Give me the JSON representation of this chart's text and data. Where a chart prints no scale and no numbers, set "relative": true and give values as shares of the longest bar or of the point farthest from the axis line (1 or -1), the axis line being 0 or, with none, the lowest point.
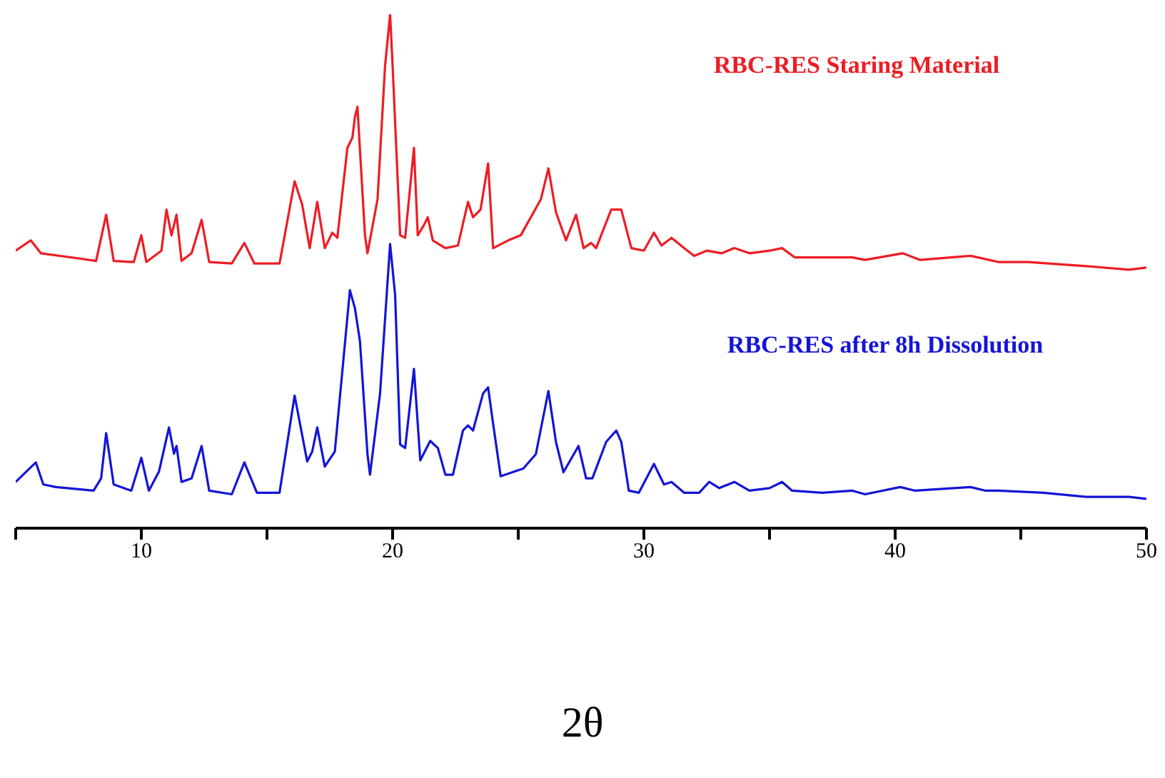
{
  "chart_data": {
    "type": "line",
    "relative": true,
    "xlabel": "2θ",
    "xlim": [
      5,
      50
    ],
    "xticks": [
      {
        "value": 5,
        "label": null
      },
      10,
      {
        "value": 15,
        "label": null
      },
      20,
      {
        "value": 25,
        "label": null
      },
      30,
      {
        "value": 35,
        "label": null
      },
      40,
      {
        "value": 45,
        "label": null
      },
      50
    ],
    "grid": false,
    "legend": false,
    "marker": "none",
    "line_style": "solid",
    "series": [
      {
        "name": "RBC-RES Staring Material",
        "color": "#ee1c24",
        "x": [
          5.0,
          5.6,
          6.0,
          7.5,
          8.2,
          8.6,
          8.9,
          9.7,
          10.0,
          10.2,
          10.8,
          11.0,
          11.2,
          11.4,
          11.6,
          12.0,
          12.4,
          12.7,
          13.6,
          14.1,
          14.5,
          15.5,
          16.1,
          16.4,
          16.7,
          17.0,
          17.3,
          17.6,
          17.8,
          18.2,
          18.4,
          18.5,
          18.6,
          18.9,
          19.0,
          19.4,
          19.7,
          19.9,
          20.0,
          20.3,
          20.5,
          20.85,
          21.0,
          21.25,
          21.4,
          21.6,
          22.1,
          22.6,
          23.0,
          23.2,
          23.5,
          23.8,
          24.0,
          24.6,
          25.1,
          25.9,
          26.2,
          26.5,
          26.9,
          27.3,
          27.6,
          27.9,
          28.1,
          28.7,
          29.1,
          29.5,
          30.0,
          30.4,
          30.7,
          31.1,
          31.6,
          32.0,
          32.5,
          33.1,
          33.6,
          34.2,
          35.0,
          35.5,
          36.0,
          37.7,
          38.3,
          38.8,
          40.3,
          41.0,
          43.0,
          44.1,
          45.3,
          47.6,
          49.3,
          50.0
        ],
        "values": [
          0.54,
          0.56,
          0.535,
          0.525,
          0.52,
          0.61,
          0.52,
          0.518,
          0.57,
          0.518,
          0.54,
          0.62,
          0.57,
          0.61,
          0.52,
          0.535,
          0.6,
          0.518,
          0.515,
          0.555,
          0.515,
          0.515,
          0.675,
          0.63,
          0.545,
          0.635,
          0.545,
          0.575,
          0.565,
          0.74,
          0.76,
          0.8,
          0.82,
          0.57,
          0.535,
          0.64,
          0.9,
          1.0,
          0.9,
          0.57,
          0.565,
          0.74,
          0.57,
          0.59,
          0.605,
          0.56,
          0.545,
          0.55,
          0.635,
          0.605,
          0.62,
          0.71,
          0.545,
          0.56,
          0.57,
          0.64,
          0.7,
          0.615,
          0.56,
          0.61,
          0.545,
          0.555,
          0.545,
          0.62,
          0.62,
          0.545,
          0.54,
          0.575,
          0.55,
          0.565,
          0.545,
          0.53,
          0.54,
          0.535,
          0.545,
          0.535,
          0.54,
          0.545,
          0.527,
          0.527,
          0.527,
          0.522,
          0.535,
          0.522,
          0.53,
          0.518,
          0.518,
          0.51,
          0.503,
          0.507
        ]
      },
      {
        "name": "RBC-RES after 8h Dissolution",
        "color": "#1414d8",
        "x": [
          5.0,
          5.8,
          6.1,
          6.6,
          8.1,
          8.4,
          8.6,
          8.9,
          9.6,
          10.0,
          10.3,
          10.7,
          11.1,
          11.3,
          11.4,
          11.6,
          12.0,
          12.4,
          12.7,
          13.6,
          14.1,
          14.6,
          15.5,
          16.1,
          16.6,
          16.8,
          17.0,
          17.3,
          17.7,
          18.3,
          18.5,
          18.7,
          19.0,
          19.1,
          19.5,
          19.9,
          20.1,
          20.3,
          20.5,
          20.85,
          21.1,
          21.5,
          21.6,
          21.8,
          22.1,
          22.4,
          22.8,
          23.0,
          23.2,
          23.6,
          23.8,
          24.0,
          24.3,
          24.9,
          25.2,
          25.7,
          26.2,
          26.5,
          26.8,
          27.4,
          27.7,
          27.95,
          28.5,
          28.9,
          29.1,
          29.4,
          29.8,
          30.4,
          30.8,
          31.1,
          31.6,
          32.2,
          32.6,
          33.0,
          33.6,
          34.2,
          35.0,
          35.5,
          35.9,
          37.1,
          38.3,
          38.8,
          40.2,
          40.8,
          43.0,
          43.6,
          44.1,
          45.9,
          47.6,
          49.3,
          50.0
        ],
        "values": [
          0.09,
          0.128,
          0.085,
          0.08,
          0.073,
          0.097,
          0.185,
          0.085,
          0.073,
          0.137,
          0.073,
          0.11,
          0.196,
          0.145,
          0.16,
          0.09,
          0.097,
          0.16,
          0.073,
          0.066,
          0.128,
          0.069,
          0.069,
          0.258,
          0.13,
          0.149,
          0.196,
          0.12,
          0.149,
          0.463,
          0.428,
          0.364,
          0.144,
          0.104,
          0.262,
          0.553,
          0.454,
          0.163,
          0.156,
          0.31,
          0.132,
          0.17,
          0.165,
          0.156,
          0.104,
          0.104,
          0.19,
          0.2,
          0.19,
          0.262,
          0.274,
          0.203,
          0.101,
          0.111,
          0.116,
          0.144,
          0.267,
          0.168,
          0.109,
          0.16,
          0.097,
          0.097,
          0.168,
          0.19,
          0.168,
          0.073,
          0.069,
          0.125,
          0.085,
          0.09,
          0.069,
          0.069,
          0.09,
          0.078,
          0.09,
          0.073,
          0.078,
          0.09,
          0.073,
          0.069,
          0.073,
          0.066,
          0.08,
          0.073,
          0.08,
          0.073,
          0.073,
          0.069,
          0.061,
          0.061,
          0.057
        ]
      }
    ]
  }
}
